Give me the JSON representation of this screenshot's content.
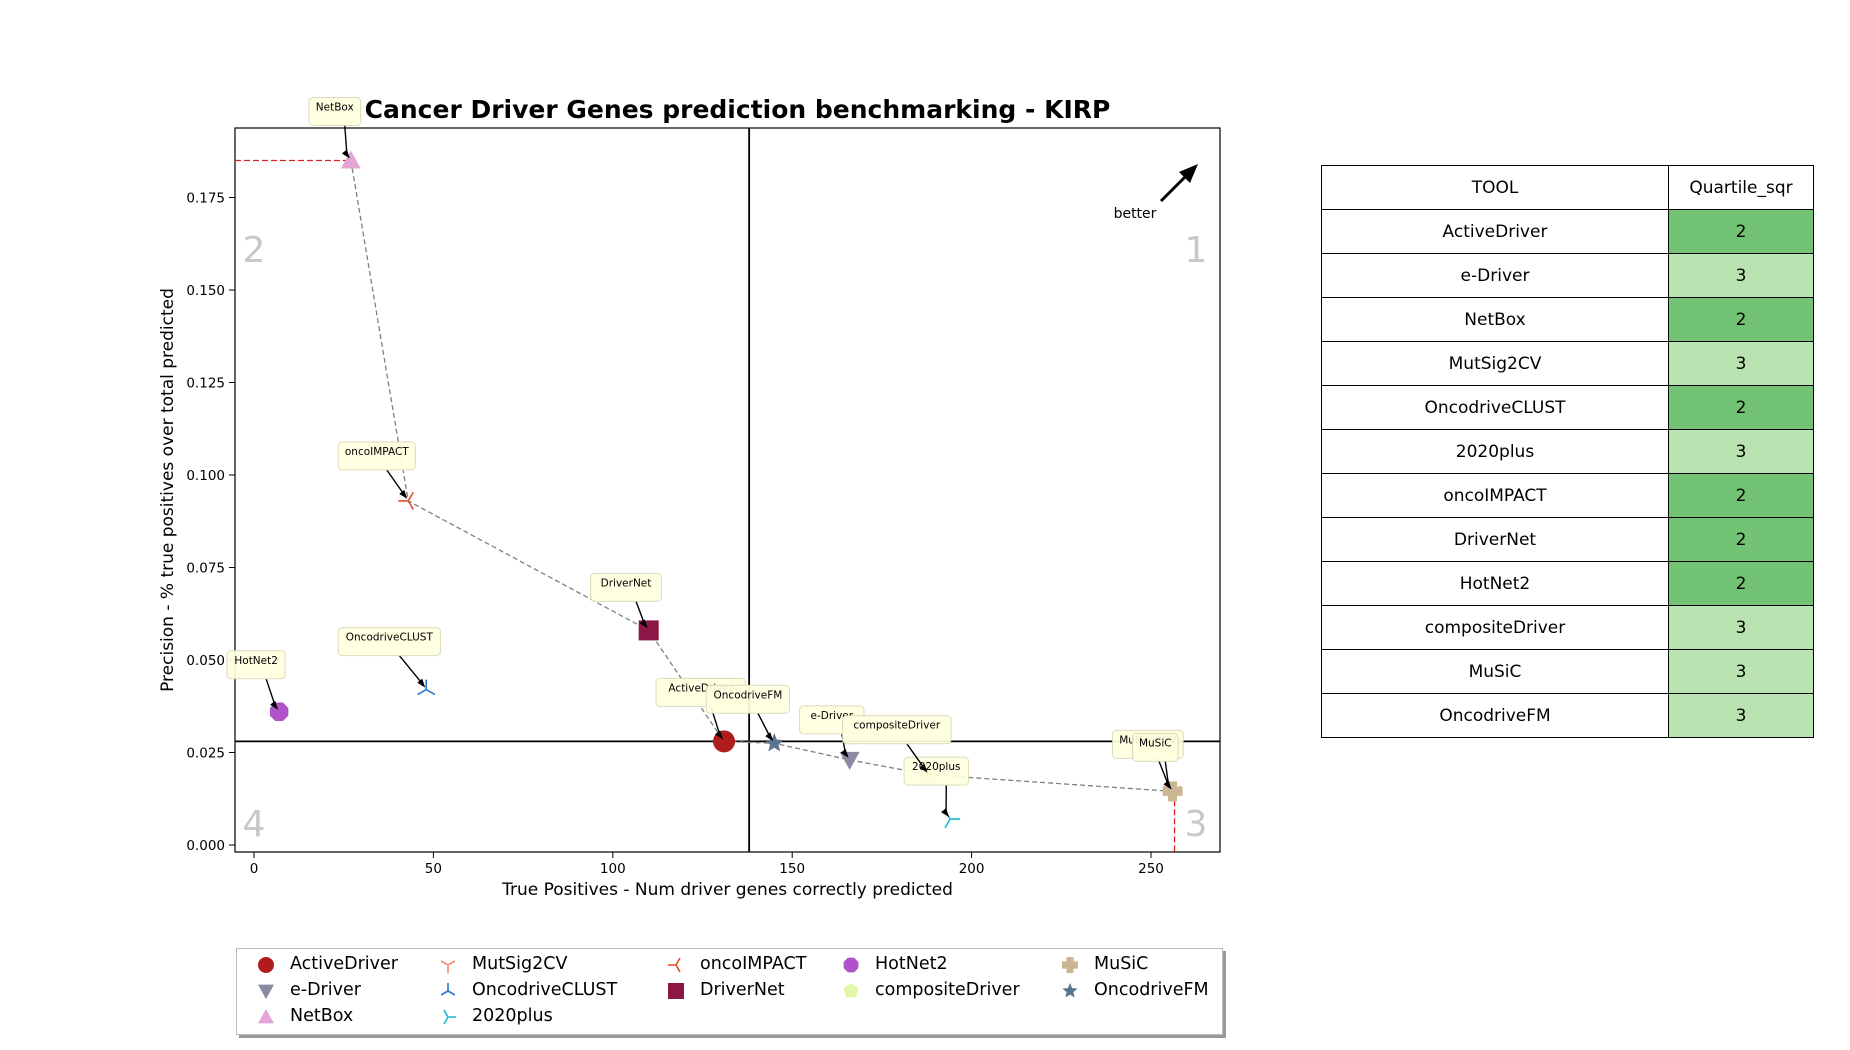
{
  "chart_data": {
    "type": "scatter",
    "title": "Cancer Driver Genes prediction benchmarking - KIRP",
    "xlabel": "True Positives - Num driver genes correctly predicted",
    "ylabel": "Precision - % true positives over total predicted",
    "xlim": [
      -5,
      270
    ],
    "ylim": [
      -0.002,
      0.19
    ],
    "x_ticks": [
      0,
      50,
      100,
      150,
      200,
      250
    ],
    "y_ticks": [
      "0.000",
      "0.025",
      "0.050",
      "0.075",
      "0.100",
      "0.125",
      "0.150",
      "0.175"
    ],
    "y_tick_values": [
      0,
      0.025,
      0.05,
      0.075,
      0.1,
      0.125,
      0.15,
      0.175
    ],
    "grid": false,
    "legend_position": "bottom",
    "quadrant_lines": {
      "x": 138,
      "y": 0.028
    },
    "quadrant_labels": [
      "1",
      "2",
      "3",
      "4"
    ],
    "better_label": "better",
    "series": [
      {
        "name": "ActiveDriver",
        "x": 131,
        "y": 0.028,
        "marker": "circle",
        "color": "#b01c1c"
      },
      {
        "name": "e-Driver",
        "x": 166,
        "y": 0.023,
        "marker": "triangle-down",
        "color": "#8a8aa3"
      },
      {
        "name": "NetBox",
        "x": 27,
        "y": 0.185,
        "marker": "triangle-up",
        "color": "#e3a5d6"
      },
      {
        "name": "MutSig2CV",
        "x": 256,
        "y": 0.0145,
        "marker": "tri-down",
        "color": "#f58b74"
      },
      {
        "name": "OncodriveCLUST",
        "x": 48,
        "y": 0.042,
        "marker": "tri-up",
        "color": "#2a7bd0"
      },
      {
        "name": "2020plus",
        "x": 194,
        "y": 0.007,
        "marker": "tri-left",
        "color": "#1fb7d1"
      },
      {
        "name": "oncoIMPACT",
        "x": 43,
        "y": 0.093,
        "marker": "tri-right",
        "color": "#e04e2b"
      },
      {
        "name": "DriverNet",
        "x": 110,
        "y": 0.058,
        "marker": "square",
        "color": "#8c1646"
      },
      {
        "name": "HotNet2",
        "x": 7,
        "y": 0.036,
        "marker": "octagon",
        "color": "#b052c9"
      },
      {
        "name": "compositeDriver",
        "x": 188,
        "y": 0.019,
        "marker": "pentagon",
        "color": "#e3f7a8"
      },
      {
        "name": "MuSiC",
        "x": 256,
        "y": 0.0145,
        "marker": "plus",
        "color": "#cbb593"
      },
      {
        "name": "OncodriveFM",
        "x": 145,
        "y": 0.0275,
        "marker": "star",
        "color": "#5b7591"
      }
    ],
    "pareto_frontier": [
      [
        27,
        0.185
      ],
      [
        43,
        0.093
      ],
      [
        110,
        0.058
      ],
      [
        131,
        0.028
      ],
      [
        145,
        0.0275
      ],
      [
        166,
        0.023
      ],
      [
        188,
        0.019
      ],
      [
        256,
        0.0145
      ]
    ]
  },
  "table": {
    "headers": [
      "TOOL",
      "Quartile_sqr"
    ],
    "rows": [
      {
        "tool": "ActiveDriver",
        "quartile": "2"
      },
      {
        "tool": "e-Driver",
        "quartile": "3"
      },
      {
        "tool": "NetBox",
        "quartile": "2"
      },
      {
        "tool": "MutSig2CV",
        "quartile": "3"
      },
      {
        "tool": "OncodriveCLUST",
        "quartile": "2"
      },
      {
        "tool": "2020plus",
        "quartile": "3"
      },
      {
        "tool": "oncoIMPACT",
        "quartile": "2"
      },
      {
        "tool": "DriverNet",
        "quartile": "2"
      },
      {
        "tool": "HotNet2",
        "quartile": "2"
      },
      {
        "tool": "compositeDriver",
        "quartile": "3"
      },
      {
        "tool": "MuSiC",
        "quartile": "3"
      },
      {
        "tool": "OncodriveFM",
        "quartile": "3"
      }
    ],
    "quartile_colors": {
      "2": "#72c374",
      "3": "#b9e3b1"
    }
  }
}
